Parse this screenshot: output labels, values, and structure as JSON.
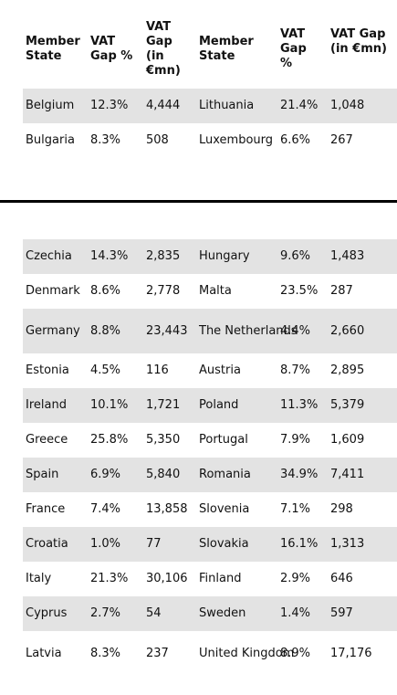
{
  "headers": {
    "member_state_1": "Member State",
    "vat_gap_pct_1": "VAT Gap %",
    "vat_gap_mn_1": "VAT Gap (in €mn)",
    "member_state_2": "Member State",
    "vat_gap_pct_2": "VAT Gap %",
    "vat_gap_mn_2": "VAT Gap (in €mn)"
  },
  "top_rows": [
    {
      "s1": "Belgium",
      "p1": "12.3%",
      "m1": "4,444",
      "s2": "Lithuania",
      "p2": "21.4%",
      "m2": "1,048"
    },
    {
      "s1": "Bulgaria",
      "p1": "8.3%",
      "m1": "508",
      "s2": "Luxembourg",
      "p2": "6.6%",
      "m2": "267"
    }
  ],
  "bottom_rows": [
    {
      "s1": "Czechia",
      "p1": "14.3%",
      "m1": "2,835",
      "s2": "Hungary",
      "p2": "9.6%",
      "m2": "1,483"
    },
    {
      "s1": "Denmark",
      "p1": "8.6%",
      "m1": "2,778",
      "s2": "Malta",
      "p2": "23.5%",
      "m2": "287"
    },
    {
      "s1": "Germany",
      "p1": "8.8%",
      "m1": "23,443",
      "s2": "The Netherlands",
      "p2": "4.4%",
      "m2": "2,660"
    },
    {
      "s1": "Estonia",
      "p1": "4.5%",
      "m1": "116",
      "s2": "Austria",
      "p2": "8.7%",
      "m2": "2,895"
    },
    {
      "s1": "Ireland",
      "p1": "10.1%",
      "m1": "1,721",
      "s2": "Poland",
      "p2": "11.3%",
      "m2": "5,379"
    },
    {
      "s1": "Greece",
      "p1": "25.8%",
      "m1": "5,350",
      "s2": "Portugal",
      "p2": "7.9%",
      "m2": "1,609"
    },
    {
      "s1": "Spain",
      "p1": "6.9%",
      "m1": "5,840",
      "s2": "Romania",
      "p2": "34.9%",
      "m2": "7,411"
    },
    {
      "s1": "France",
      "p1": "7.4%",
      "m1": "13,858",
      "s2": "Slovenia",
      "p2": "7.1%",
      "m2": "298"
    },
    {
      "s1": "Croatia",
      "p1": "1.0%",
      "m1": "77",
      "s2": "Slovakia",
      "p2": "16.1%",
      "m2": "1,313"
    },
    {
      "s1": "Italy",
      "p1": "21.3%",
      "m1": "30,106",
      "s2": "Finland",
      "p2": "2.9%",
      "m2": "646"
    },
    {
      "s1": "Cyprus",
      "p1": "2.7%",
      "m1": "54",
      "s2": "Sweden",
      "p2": "1.4%",
      "m2": "597"
    },
    {
      "s1": "Latvia",
      "p1": "8.3%",
      "m1": "237",
      "s2": "United Kingdom",
      "p2": "8.9%",
      "m2": "17,176"
    }
  ]
}
